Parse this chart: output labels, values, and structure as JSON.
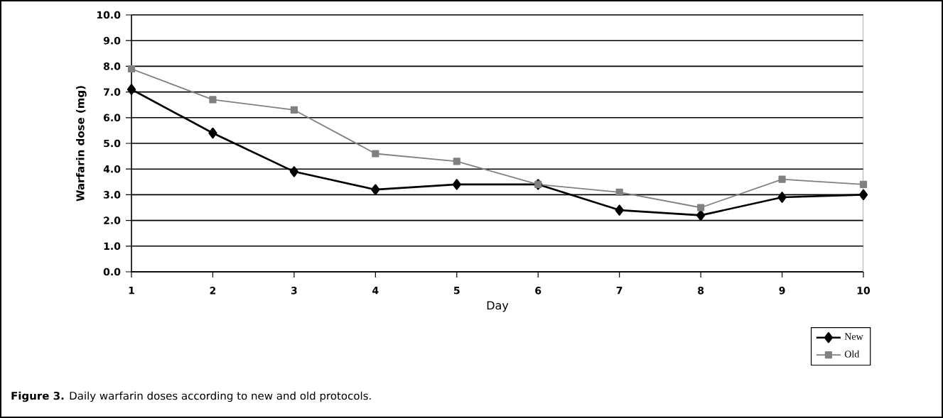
{
  "chart_data": {
    "type": "line",
    "title": "**Figure 3.** Daily warfarin doses according to new and old protocols.",
    "xlabel": "Day",
    "ylabel": "Warfarin dose (mg)",
    "x": [
      1,
      2,
      3,
      4,
      5,
      6,
      7,
      8,
      9,
      10
    ],
    "series": [
      {
        "name": "New",
        "color": "#000000",
        "marker": "diamond",
        "values": [
          7.1,
          5.4,
          3.9,
          3.2,
          3.4,
          3.4,
          2.4,
          2.2,
          2.9,
          3.0
        ]
      },
      {
        "name": "Old",
        "color": "#808080",
        "marker": "square",
        "values": [
          7.9,
          6.7,
          6.3,
          4.6,
          4.3,
          3.4,
          3.1,
          2.5,
          3.6,
          3.4
        ]
      }
    ],
    "xlim": [
      1,
      10
    ],
    "xticks": [
      1,
      2,
      3,
      4,
      5,
      6,
      7,
      8,
      9,
      10
    ],
    "ylim": [
      0,
      10
    ],
    "yticks": [
      {
        "value": 0,
        "label": "0.0"
      },
      {
        "value": 1,
        "label": "1.0"
      },
      {
        "value": 2,
        "label": "2.0"
      },
      {
        "value": 3,
        "label": "3.0"
      },
      {
        "value": 4,
        "label": "4.0"
      },
      {
        "value": 5,
        "label": "5.0"
      },
      {
        "value": 6,
        "label": "6.0"
      },
      {
        "value": 7,
        "label": "7.0"
      },
      {
        "value": 8,
        "label": "8.0"
      },
      {
        "value": 9,
        "label": "9.0"
      },
      {
        "value": 10,
        "label": "10.0"
      }
    ],
    "grid": "y",
    "legend": "bottom right",
    "line_style": "solid"
  }
}
